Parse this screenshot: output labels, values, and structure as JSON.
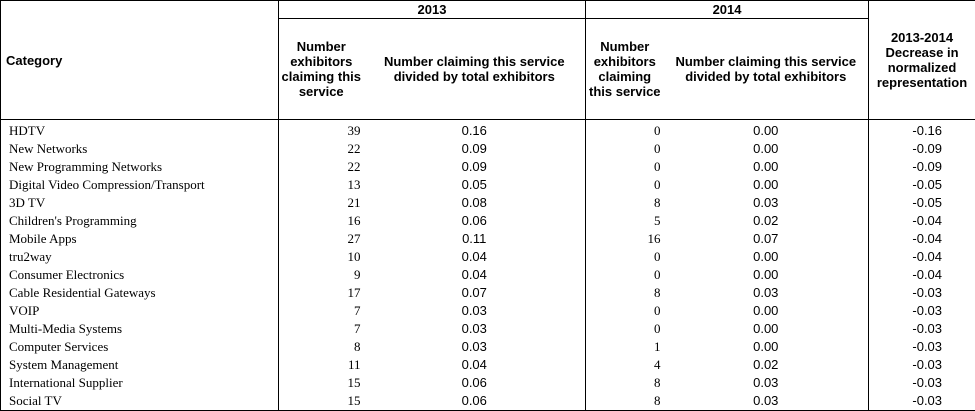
{
  "headers": {
    "category": "Category",
    "year_2013": "2013",
    "year_2014": "2014",
    "num_exhibitors": "Number exhibitors claiming this service",
    "normalized": "Number claiming this service divided by total exhibitors",
    "decrease": "2013-2014 Decrease in normalized representation"
  },
  "rows": [
    {
      "category": "HDTV",
      "n2013": "39",
      "r2013": "0.16",
      "n2014": "0",
      "r2014": "0.00",
      "decrease": "-0.16"
    },
    {
      "category": "New Networks",
      "n2013": "22",
      "r2013": "0.09",
      "n2014": "0",
      "r2014": "0.00",
      "decrease": "-0.09"
    },
    {
      "category": "New Programming Networks",
      "n2013": "22",
      "r2013": "0.09",
      "n2014": "0",
      "r2014": "0.00",
      "decrease": "-0.09"
    },
    {
      "category": "Digital Video Compression/Transport",
      "n2013": "13",
      "r2013": "0.05",
      "n2014": "0",
      "r2014": "0.00",
      "decrease": "-0.05"
    },
    {
      "category": "3D TV",
      "n2013": "21",
      "r2013": "0.08",
      "n2014": "8",
      "r2014": "0.03",
      "decrease": "-0.05"
    },
    {
      "category": "Children's Programming",
      "n2013": "16",
      "r2013": "0.06",
      "n2014": "5",
      "r2014": "0.02",
      "decrease": "-0.04"
    },
    {
      "category": "Mobile Apps",
      "n2013": "27",
      "r2013": "0.11",
      "n2014": "16",
      "r2014": "0.07",
      "decrease": "-0.04"
    },
    {
      "category": "tru2way",
      "n2013": "10",
      "r2013": "0.04",
      "n2014": "0",
      "r2014": "0.00",
      "decrease": "-0.04"
    },
    {
      "category": "Consumer Electronics",
      "n2013": "9",
      "r2013": "0.04",
      "n2014": "0",
      "r2014": "0.00",
      "decrease": "-0.04"
    },
    {
      "category": "Cable Residential Gateways",
      "n2013": "17",
      "r2013": "0.07",
      "n2014": "8",
      "r2014": "0.03",
      "decrease": "-0.03"
    },
    {
      "category": "VOIP",
      "n2013": "7",
      "r2013": "0.03",
      "n2014": "0",
      "r2014": "0.00",
      "decrease": "-0.03"
    },
    {
      "category": "Multi-Media Systems",
      "n2013": "7",
      "r2013": "0.03",
      "n2014": "0",
      "r2014": "0.00",
      "decrease": "-0.03"
    },
    {
      "category": "Computer Services",
      "n2013": "8",
      "r2013": "0.03",
      "n2014": "1",
      "r2014": "0.00",
      "decrease": "-0.03"
    },
    {
      "category": "System Management",
      "n2013": "11",
      "r2013": "0.04",
      "n2014": "4",
      "r2014": "0.02",
      "decrease": "-0.03"
    },
    {
      "category": "International Supplier",
      "n2013": "15",
      "r2013": "0.06",
      "n2014": "8",
      "r2014": "0.03",
      "decrease": "-0.03"
    },
    {
      "category": "Social TV",
      "n2013": "15",
      "r2013": "0.06",
      "n2014": "8",
      "r2014": "0.03",
      "decrease": "-0.03"
    }
  ]
}
